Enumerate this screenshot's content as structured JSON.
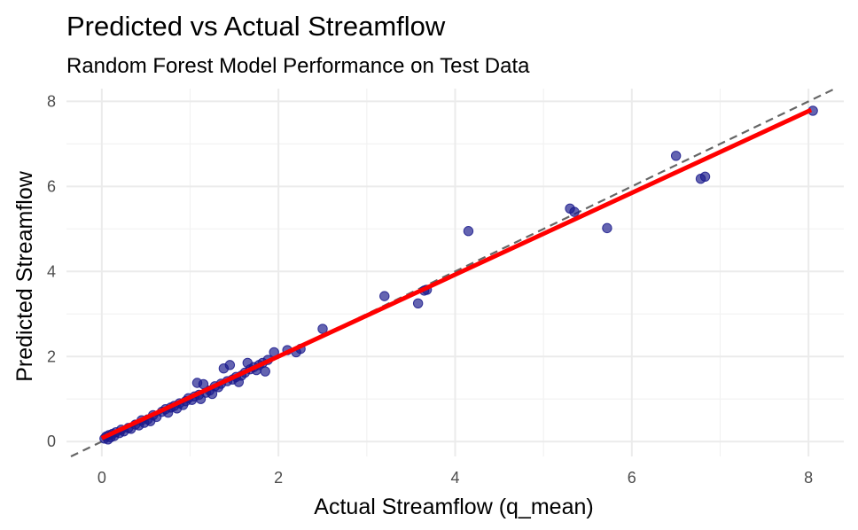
{
  "chart_data": {
    "type": "scatter",
    "title": "Predicted vs Actual Streamflow",
    "subtitle": "Random Forest Model Performance on Test Data",
    "xlabel": "Actual Streamflow (q_mean)",
    "ylabel": "Predicted Streamflow",
    "xlim": [
      -0.4,
      8.4
    ],
    "ylim": [
      -0.35,
      8.3
    ],
    "x_ticks": [
      0,
      2,
      4,
      6,
      8
    ],
    "y_ticks": [
      0,
      2,
      4,
      6,
      8
    ],
    "grid": true,
    "point_color": "#1a1a8c",
    "fit_line_color": "#ff0000",
    "reference_line_color": "#666666",
    "reference_line": {
      "style": "dashed",
      "slope": 1,
      "intercept": 0
    },
    "fit_line": {
      "x": [
        0,
        8.03
      ],
      "y": [
        0.08,
        7.8
      ]
    },
    "points": [
      {
        "x": 0.03,
        "y": 0.07
      },
      {
        "x": 0.05,
        "y": 0.12
      },
      {
        "x": 0.07,
        "y": 0.05
      },
      {
        "x": 0.08,
        "y": 0.15
      },
      {
        "x": 0.1,
        "y": 0.1
      },
      {
        "x": 0.12,
        "y": 0.18
      },
      {
        "x": 0.14,
        "y": 0.13
      },
      {
        "x": 0.16,
        "y": 0.22
      },
      {
        "x": 0.2,
        "y": 0.2
      },
      {
        "x": 0.22,
        "y": 0.28
      },
      {
        "x": 0.25,
        "y": 0.24
      },
      {
        "x": 0.3,
        "y": 0.32
      },
      {
        "x": 0.33,
        "y": 0.3
      },
      {
        "x": 0.38,
        "y": 0.4
      },
      {
        "x": 0.42,
        "y": 0.38
      },
      {
        "x": 0.45,
        "y": 0.5
      },
      {
        "x": 0.48,
        "y": 0.44
      },
      {
        "x": 0.52,
        "y": 0.52
      },
      {
        "x": 0.55,
        "y": 0.48
      },
      {
        "x": 0.58,
        "y": 0.62
      },
      {
        "x": 0.62,
        "y": 0.58
      },
      {
        "x": 0.68,
        "y": 0.7
      },
      {
        "x": 0.72,
        "y": 0.76
      },
      {
        "x": 0.75,
        "y": 0.68
      },
      {
        "x": 0.78,
        "y": 0.8
      },
      {
        "x": 0.82,
        "y": 0.84
      },
      {
        "x": 0.85,
        "y": 0.78
      },
      {
        "x": 0.88,
        "y": 0.9
      },
      {
        "x": 0.92,
        "y": 0.86
      },
      {
        "x": 0.95,
        "y": 0.95
      },
      {
        "x": 0.98,
        "y": 1.02
      },
      {
        "x": 1.02,
        "y": 0.98
      },
      {
        "x": 1.05,
        "y": 1.06
      },
      {
        "x": 1.08,
        "y": 1.38
      },
      {
        "x": 1.1,
        "y": 1.1
      },
      {
        "x": 1.12,
        "y": 1.0
      },
      {
        "x": 1.15,
        "y": 1.35
      },
      {
        "x": 1.18,
        "y": 1.15
      },
      {
        "x": 1.22,
        "y": 1.2
      },
      {
        "x": 1.25,
        "y": 1.12
      },
      {
        "x": 1.28,
        "y": 1.3
      },
      {
        "x": 1.32,
        "y": 1.28
      },
      {
        "x": 1.35,
        "y": 1.36
      },
      {
        "x": 1.38,
        "y": 1.72
      },
      {
        "x": 1.42,
        "y": 1.42
      },
      {
        "x": 1.45,
        "y": 1.8
      },
      {
        "x": 1.48,
        "y": 1.46
      },
      {
        "x": 1.52,
        "y": 1.52
      },
      {
        "x": 1.55,
        "y": 1.4
      },
      {
        "x": 1.58,
        "y": 1.55
      },
      {
        "x": 1.62,
        "y": 1.62
      },
      {
        "x": 1.65,
        "y": 1.85
      },
      {
        "x": 1.68,
        "y": 1.7
      },
      {
        "x": 1.72,
        "y": 1.75
      },
      {
        "x": 1.75,
        "y": 1.68
      },
      {
        "x": 1.78,
        "y": 1.8
      },
      {
        "x": 1.82,
        "y": 1.85
      },
      {
        "x": 1.85,
        "y": 1.65
      },
      {
        "x": 1.88,
        "y": 1.92
      },
      {
        "x": 1.95,
        "y": 2.1
      },
      {
        "x": 2.1,
        "y": 2.15
      },
      {
        "x": 2.2,
        "y": 2.1
      },
      {
        "x": 2.25,
        "y": 2.18
      },
      {
        "x": 2.5,
        "y": 2.65
      },
      {
        "x": 3.2,
        "y": 3.42
      },
      {
        "x": 3.58,
        "y": 3.25
      },
      {
        "x": 3.65,
        "y": 3.55
      },
      {
        "x": 3.68,
        "y": 3.57
      },
      {
        "x": 4.15,
        "y": 4.95
      },
      {
        "x": 5.3,
        "y": 5.48
      },
      {
        "x": 5.35,
        "y": 5.4
      },
      {
        "x": 5.72,
        "y": 5.02
      },
      {
        "x": 6.5,
        "y": 6.72
      },
      {
        "x": 6.78,
        "y": 6.18
      },
      {
        "x": 6.83,
        "y": 6.23
      },
      {
        "x": 8.05,
        "y": 7.78
      }
    ]
  }
}
